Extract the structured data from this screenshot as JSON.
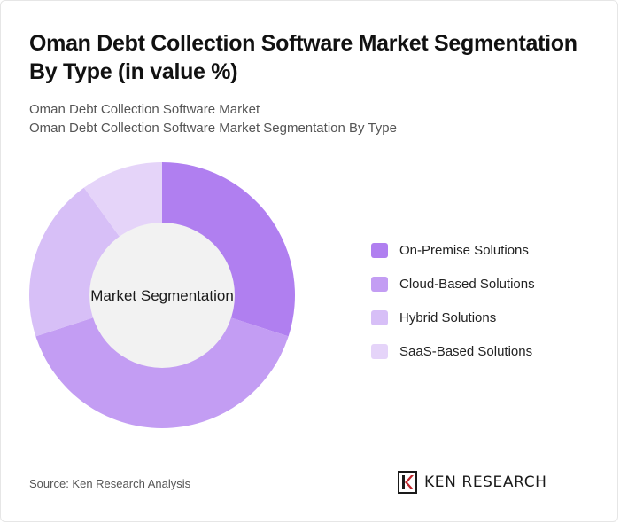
{
  "header": {
    "title": "Oman Debt Collection Software Market Segmentation By Type (in value %)",
    "subtitle_line1": "Oman Debt Collection Software Market",
    "subtitle_line2": "Oman Debt Collection Software Market Segmentation By Type"
  },
  "chart_data": {
    "type": "pie",
    "variant": "donut",
    "center_label": "Market Segmentation",
    "categories": [
      "On-Premise Solutions",
      "Cloud-Based Solutions",
      "Hybrid Solutions",
      "SaaS-Based Solutions"
    ],
    "values": [
      30,
      40,
      20,
      10
    ],
    "colors": [
      "#b07ff0",
      "#c39df3",
      "#d7bff7",
      "#e5d4f9"
    ],
    "legend_position": "right",
    "start_angle": "top"
  },
  "footer": {
    "source": "Source: Ken Research Analysis",
    "logo_text": "KEN RESEARCH"
  }
}
